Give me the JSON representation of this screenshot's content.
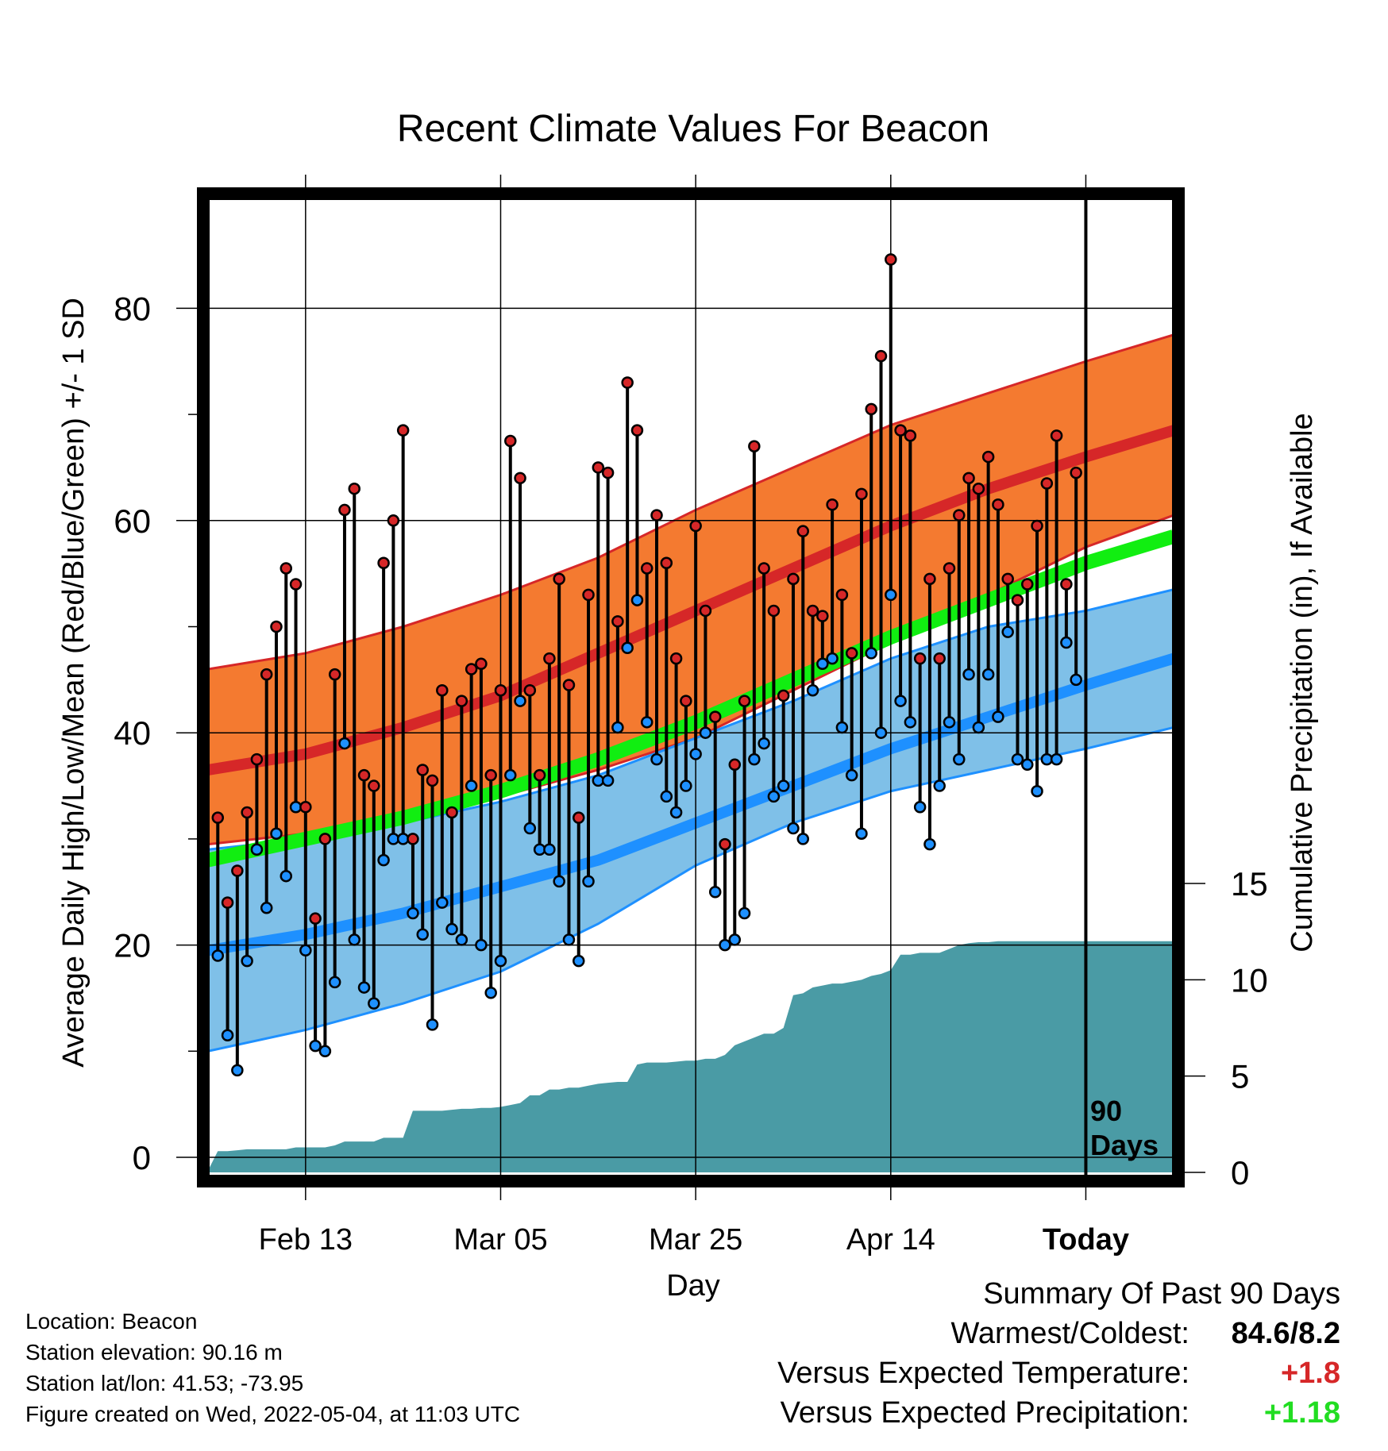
{
  "title": "Recent Climate Values For Beacon",
  "ylabel": "Average Daily High/Low/Mean (Red/Blue/Green) +/- 1 SD",
  "y2label": "Cumulative Precipitation (in), If Available",
  "xlabel": "Day",
  "today_marker": {
    "label_line1": "90",
    "label_line2": "Days"
  },
  "info": {
    "location": "Location: Beacon",
    "elevation": "Station elevation: 90.16 m",
    "latlon": "Station lat/lon: 41.53; -73.95",
    "created": "Figure created on Wed, 2022-05-04, at 11:03 UTC"
  },
  "summary": {
    "heading": "Summary Of Past 90 Days",
    "warmest_label": "Warmest/Coldest:",
    "warmest_value": "84.6/8.2",
    "temp_label": "Versus Expected Temperature:",
    "temp_value": "+1.8",
    "prec_label": "Versus Expected Precipitation:",
    "prec_value": "+1.18"
  },
  "colors": {
    "high_band": "#f47a30",
    "high_mean": "#d62728",
    "low_band": "#7fc0e8",
    "low_mean": "#1e90ff",
    "mean_line": "#11ee11",
    "precip": "#4a9ba5",
    "high_dot": "#d62728",
    "low_dot": "#1e90ff"
  },
  "chart_data": {
    "type": "line",
    "x_range_days": [
      -90,
      9
    ],
    "ylim": [
      -1,
      90
    ],
    "y2lim": [
      0,
      40
    ],
    "x_tick_labels": [
      {
        "day": -80,
        "label": "Feb 13"
      },
      {
        "day": -60,
        "label": "Mar 05"
      },
      {
        "day": -40,
        "label": "Mar 25"
      },
      {
        "day": -20,
        "label": "Apr 14"
      },
      {
        "day": 0,
        "label": "Today"
      }
    ],
    "y_ticks": [
      0,
      20,
      40,
      60,
      80
    ],
    "y2_ticks": [
      0,
      5,
      10,
      15
    ],
    "normals": {
      "x": [
        -90,
        -80,
        -70,
        -60,
        -50,
        -40,
        -30,
        -20,
        -10,
        0,
        9
      ],
      "high_mean": [
        36.5,
        38,
        40.5,
        43.5,
        47.5,
        51.5,
        55.5,
        59.5,
        63,
        66,
        68.5
      ],
      "high_upper": [
        46,
        47.5,
        50,
        53,
        56.5,
        61,
        65,
        69,
        72,
        75,
        77.5
      ],
      "high_lower": [
        29.5,
        30.5,
        32,
        34,
        36.5,
        39.5,
        44,
        48.5,
        53,
        57.5,
        60.5
      ],
      "mean_line": [
        28,
        30,
        32,
        34.5,
        37.5,
        41,
        45,
        49,
        52.5,
        56,
        58.5
      ],
      "low_mean": [
        19.5,
        21,
        23,
        25.5,
        28,
        31.5,
        35,
        38.5,
        41.5,
        44.5,
        47
      ],
      "low_upper": [
        29,
        30,
        31.5,
        33.5,
        36,
        39.5,
        43,
        47,
        50,
        51.5,
        53.5
      ],
      "low_lower": [
        10,
        12,
        14.5,
        17.5,
        22,
        27.5,
        31.5,
        34.5,
        36.5,
        38.5,
        40.5
      ]
    },
    "daily_x": [
      -89,
      -88,
      -87,
      -86,
      -85,
      -84,
      -83,
      -82,
      -81,
      -80,
      -79,
      -78,
      -77,
      -76,
      -75,
      -74,
      -73,
      -72,
      -71,
      -70,
      -69,
      -68,
      -67,
      -66,
      -65,
      -64,
      -63,
      -62,
      -61,
      -60,
      -59,
      -58,
      -57,
      -56,
      -55,
      -54,
      -53,
      -52,
      -51,
      -50,
      -49,
      -48,
      -47,
      -46,
      -45,
      -44,
      -43,
      -42,
      -41,
      -40,
      -39,
      -38,
      -37,
      -36,
      -35,
      -34,
      -33,
      -32,
      -31,
      -30,
      -29,
      -28,
      -27,
      -26,
      -25,
      -24,
      -23,
      -22,
      -21,
      -20,
      -19,
      -18,
      -17,
      -16,
      -15,
      -14,
      -13,
      -12,
      -11,
      -10,
      -9,
      -8,
      -7,
      -6,
      -5,
      -4,
      -3,
      -2,
      -1
    ],
    "daily_high": [
      32,
      24,
      27,
      32.5,
      37.5,
      45.5,
      50,
      55.5,
      54,
      33,
      22.5,
      30,
      45.5,
      61,
      63,
      36,
      35,
      56,
      60,
      68.5,
      30,
      36.5,
      35.5,
      44,
      32.5,
      43,
      46,
      46.5,
      36,
      44,
      67.5,
      64,
      44,
      36,
      47,
      54.5,
      44.5,
      32,
      53,
      65,
      64.5,
      50.5,
      73,
      68.5,
      55.5,
      60.5,
      56,
      47,
      43,
      59.5,
      51.5,
      41.5,
      29.5,
      37,
      43,
      67,
      55.5,
      51.5,
      43.5,
      54.5,
      59,
      51.5,
      51,
      61.5,
      53,
      47.5,
      62.5,
      70.5,
      75.5,
      84.6,
      68.5,
      68,
      47,
      54.5,
      47,
      55.5,
      60.5,
      64,
      63,
      66,
      61.5,
      54.5,
      52.5,
      54,
      59.5,
      63.5,
      68,
      54,
      64.5
    ],
    "daily_low": [
      19,
      11.5,
      8.2,
      18.5,
      29,
      23.5,
      30.5,
      26.5,
      33,
      19.5,
      10.5,
      10,
      16.5,
      39,
      20.5,
      16,
      14.5,
      28,
      30,
      30,
      23,
      21,
      12.5,
      24,
      21.5,
      20.5,
      35,
      20,
      15.5,
      18.5,
      36,
      43,
      31,
      29,
      29,
      26,
      20.5,
      18.5,
      26,
      35.5,
      35.5,
      40.5,
      48,
      52.5,
      41,
      37.5,
      34,
      32.5,
      35,
      38,
      40,
      25,
      20,
      20.5,
      23,
      37.5,
      39,
      34,
      35,
      31,
      30,
      44,
      46.5,
      47,
      40.5,
      36,
      30.5,
      47.5,
      40,
      53,
      43,
      41,
      33,
      29.5,
      35,
      41,
      37.5,
      45.5,
      40.5,
      45.5,
      41.5,
      49.5,
      37.5,
      37,
      34.5,
      37.5,
      37.5,
      48.5,
      45
    ],
    "precip_cumulative": {
      "x": [
        -90,
        -89,
        -88,
        -87,
        -86,
        -85,
        -84,
        -83,
        -82,
        -81,
        -80,
        -79,
        -78,
        -77,
        -76,
        -75,
        -74,
        -73,
        -72,
        -71,
        -70,
        -69,
        -68,
        -67,
        -66,
        -65,
        -64,
        -63,
        -62,
        -61,
        -60,
        -59,
        -58,
        -57,
        -56,
        -55,
        -54,
        -53,
        -52,
        -51,
        -50,
        -49,
        -48,
        -47,
        -46,
        -45,
        -44,
        -43,
        -42,
        -41,
        -40,
        -39,
        -38,
        -37,
        -36,
        -35,
        -34,
        -33,
        -32,
        -31,
        -30,
        -29,
        -28,
        -27,
        -26,
        -25,
        -24,
        -23,
        -22,
        -21,
        -20,
        -19,
        -18,
        -17,
        -16,
        -15,
        -14,
        -13,
        -12,
        -11,
        -10,
        -9,
        -8,
        -7,
        -6,
        -5,
        -4,
        -3,
        -2,
        -1,
        0,
        9
      ],
      "y": [
        0.1,
        1.1,
        1.1,
        1.15,
        1.2,
        1.2,
        1.2,
        1.2,
        1.2,
        1.3,
        1.3,
        1.3,
        1.3,
        1.4,
        1.6,
        1.6,
        1.6,
        1.6,
        1.8,
        1.8,
        1.8,
        3.2,
        3.2,
        3.2,
        3.2,
        3.25,
        3.3,
        3.3,
        3.35,
        3.35,
        3.4,
        3.5,
        3.6,
        4.0,
        4.0,
        4.3,
        4.3,
        4.4,
        4.4,
        4.5,
        4.6,
        4.65,
        4.7,
        4.7,
        5.6,
        5.7,
        5.7,
        5.7,
        5.75,
        5.8,
        5.8,
        5.9,
        5.9,
        6.1,
        6.6,
        6.8,
        7.0,
        7.2,
        7.2,
        7.5,
        9.2,
        9.3,
        9.6,
        9.7,
        9.8,
        9.8,
        9.9,
        10.0,
        10.2,
        10.3,
        10.5,
        11.3,
        11.3,
        11.4,
        11.4,
        11.4,
        11.6,
        11.8,
        11.9,
        11.95,
        11.95,
        12.0,
        12.0,
        12.0,
        12.0,
        12.0,
        12.0,
        12.0,
        12.0,
        12.0,
        12.0,
        12.0
      ]
    }
  }
}
